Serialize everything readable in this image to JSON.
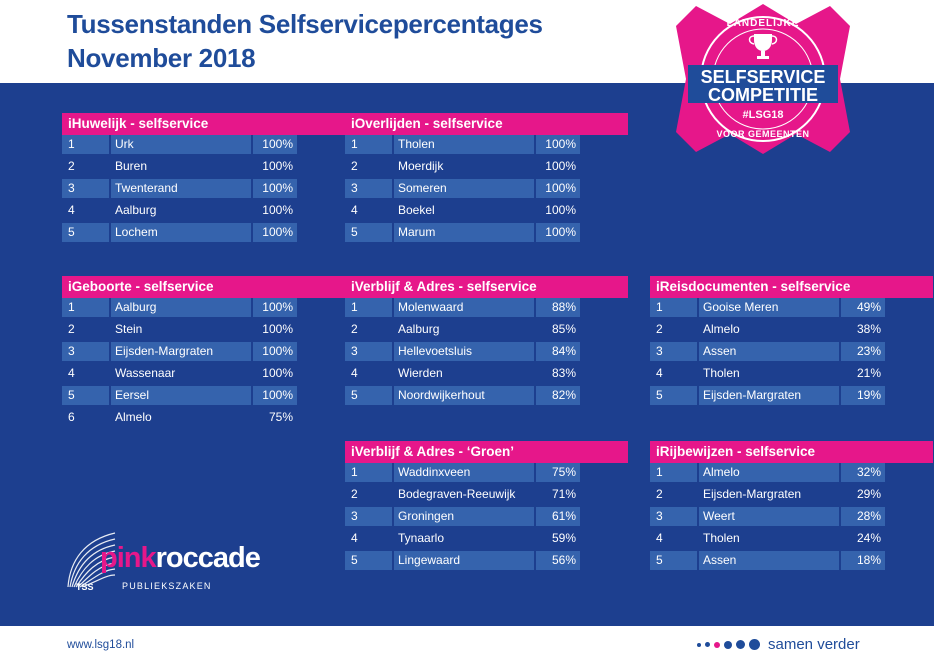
{
  "title_line1": "Tussenstanden Selfservicepercentages",
  "title_line2": "November 2018",
  "badge": {
    "top": "LANDELIJKE",
    "line1": "SELFSERVICE",
    "line2": "COMPETITIE",
    "hashtag": "#LSG18",
    "bottom": "VOOR GEMEENTEN"
  },
  "logo": {
    "brand_pink": "pink",
    "brand_white": "roccade",
    "sub": "PUBLIEKSZAKEN",
    "tss": "TSS"
  },
  "footer": {
    "url": "www.lsg18.nl",
    "tagline": "samen verder"
  },
  "panels": [
    {
      "title": "iHuwelijk - selfservice",
      "rows": [
        [
          "1",
          "Urk",
          "100%"
        ],
        [
          "2",
          "Buren",
          "100%"
        ],
        [
          "3",
          "Twenterand",
          "100%"
        ],
        [
          "4",
          "Aalburg",
          "100%"
        ],
        [
          "5",
          "Lochem",
          "100%"
        ]
      ]
    },
    {
      "title": "iOverlijden - selfservice",
      "rows": [
        [
          "1",
          "Tholen",
          "100%"
        ],
        [
          "2",
          "Moerdijk",
          "100%"
        ],
        [
          "3",
          "Someren",
          "100%"
        ],
        [
          "4",
          "Boekel",
          "100%"
        ],
        [
          "5",
          "Marum",
          "100%"
        ]
      ]
    },
    {
      "title": "iGeboorte - selfservice",
      "rows": [
        [
          "1",
          "Aalburg",
          "100%"
        ],
        [
          "2",
          "Stein",
          "100%"
        ],
        [
          "3",
          "Eijsden-Margraten",
          "100%"
        ],
        [
          "4",
          "Wassenaar",
          "100%"
        ],
        [
          "5",
          "Eersel",
          "100%"
        ],
        [
          "6",
          "Almelo",
          "75%"
        ]
      ]
    },
    {
      "title": "iVerblijf & Adres - selfservice",
      "rows": [
        [
          "1",
          "Molenwaard",
          "88%"
        ],
        [
          "2",
          "Aalburg",
          "85%"
        ],
        [
          "3",
          "Hellevoetsluis",
          "84%"
        ],
        [
          "4",
          "Wierden",
          "83%"
        ],
        [
          "5",
          "Noordwijkerhout",
          "82%"
        ]
      ]
    },
    {
      "title": "iReisdocumenten - selfservice",
      "rows": [
        [
          "1",
          "Gooise Meren",
          "49%"
        ],
        [
          "2",
          "Almelo",
          "38%"
        ],
        [
          "3",
          "Assen",
          "23%"
        ],
        [
          "4",
          "Tholen",
          "21%"
        ],
        [
          "5",
          "Eijsden-Margraten",
          "19%"
        ]
      ]
    },
    {
      "title": "iVerblijf & Adres - ‘Groen’",
      "rows": [
        [
          "1",
          "Waddinxveen",
          "75%"
        ],
        [
          "2",
          "Bodegraven-Reeuwijk",
          "71%"
        ],
        [
          "3",
          "Groningen",
          "61%"
        ],
        [
          "4",
          "Tynaarlo",
          "59%"
        ],
        [
          "5",
          "Lingewaard",
          "56%"
        ]
      ]
    },
    {
      "title": "iRijbewijzen - selfservice",
      "rows": [
        [
          "1",
          "Almelo",
          "32%"
        ],
        [
          "2",
          "Eijsden-Margraten",
          "29%"
        ],
        [
          "3",
          "Weert",
          "28%"
        ],
        [
          "4",
          "Tholen",
          "24%"
        ],
        [
          "5",
          "Assen",
          "18%"
        ]
      ]
    }
  ],
  "colors": {
    "navy": "#1d3f8f",
    "pink": "#e6178a",
    "row_blue": "#3563ad",
    "title_blue": "#1f4c9a"
  }
}
